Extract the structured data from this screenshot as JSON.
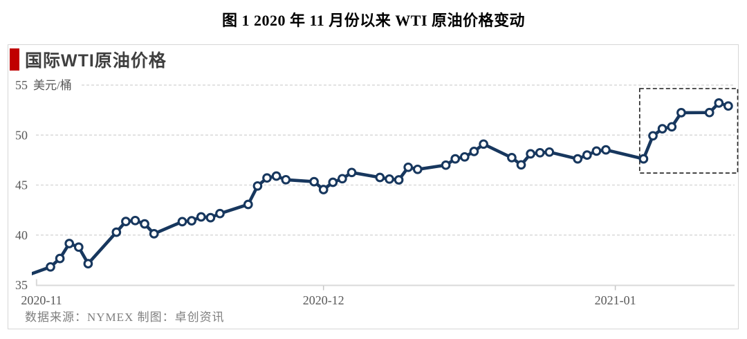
{
  "page_title": "图 1 2020 年 11 月份以来 WTI 原油价格变动",
  "panel": {
    "header": "国际WTI原油价格",
    "footer": "数据来源：NYMEX 制图：卓创资讯",
    "accent_color": "#C00000"
  },
  "chart_data": {
    "type": "line",
    "title": "国际WTI原油价格",
    "ylabel": "美元/桶",
    "unit_label": "美元/桶",
    "ylim": [
      35,
      55
    ],
    "yticks": [
      35,
      40,
      45,
      50,
      55
    ],
    "grid": "horizontal-dashed",
    "legend": "none",
    "line_color": "#17375E",
    "marker": "open-circle",
    "x_axis": {
      "scale": "calendar-days",
      "start_date": "2020-11-02",
      "ticks": [
        {
          "date": "2020-11-01",
          "label": "2020-11"
        },
        {
          "date": "2020-12-01",
          "label": "2020-12"
        },
        {
          "date": "2021-01-01",
          "label": "2021-01"
        }
      ]
    },
    "lead_in_point": {
      "date": "2020-10-30",
      "value": 35.79
    },
    "series": [
      {
        "name": "WTI原油价格",
        "points": [
          {
            "date": "2020-11-02",
            "value": 36.81
          },
          {
            "date": "2020-11-03",
            "value": 37.66
          },
          {
            "date": "2020-11-04",
            "value": 39.15
          },
          {
            "date": "2020-11-05",
            "value": 38.79
          },
          {
            "date": "2020-11-06",
            "value": 37.14
          },
          {
            "date": "2020-11-09",
            "value": 40.29
          },
          {
            "date": "2020-11-10",
            "value": 41.36
          },
          {
            "date": "2020-11-11",
            "value": 41.45
          },
          {
            "date": "2020-11-12",
            "value": 41.12
          },
          {
            "date": "2020-11-13",
            "value": 40.13
          },
          {
            "date": "2020-11-16",
            "value": 41.34
          },
          {
            "date": "2020-11-17",
            "value": 41.43
          },
          {
            "date": "2020-11-18",
            "value": 41.82
          },
          {
            "date": "2020-11-19",
            "value": 41.74
          },
          {
            "date": "2020-11-20",
            "value": 42.15
          },
          {
            "date": "2020-11-23",
            "value": 43.06
          },
          {
            "date": "2020-11-24",
            "value": 44.91
          },
          {
            "date": "2020-11-25",
            "value": 45.71
          },
          {
            "date": "2020-11-26",
            "value": 45.9
          },
          {
            "date": "2020-11-27",
            "value": 45.53
          },
          {
            "date": "2020-11-30",
            "value": 45.34
          },
          {
            "date": "2020-12-01",
            "value": 44.55
          },
          {
            "date": "2020-12-02",
            "value": 45.28
          },
          {
            "date": "2020-12-03",
            "value": 45.64
          },
          {
            "date": "2020-12-04",
            "value": 46.26
          },
          {
            "date": "2020-12-07",
            "value": 45.76
          },
          {
            "date": "2020-12-08",
            "value": 45.6
          },
          {
            "date": "2020-12-09",
            "value": 45.52
          },
          {
            "date": "2020-12-10",
            "value": 46.78
          },
          {
            "date": "2020-12-11",
            "value": 46.57
          },
          {
            "date": "2020-12-14",
            "value": 46.99
          },
          {
            "date": "2020-12-15",
            "value": 47.62
          },
          {
            "date": "2020-12-16",
            "value": 47.82
          },
          {
            "date": "2020-12-17",
            "value": 48.36
          },
          {
            "date": "2020-12-18",
            "value": 49.1
          },
          {
            "date": "2020-12-21",
            "value": 47.74
          },
          {
            "date": "2020-12-22",
            "value": 47.02
          },
          {
            "date": "2020-12-23",
            "value": 48.12
          },
          {
            "date": "2020-12-24",
            "value": 48.23
          },
          {
            "date": "2020-12-25",
            "value": 48.3
          },
          {
            "date": "2020-12-28",
            "value": 47.62
          },
          {
            "date": "2020-12-29",
            "value": 48.0
          },
          {
            "date": "2020-12-30",
            "value": 48.4
          },
          {
            "date": "2020-12-31",
            "value": 48.52
          },
          {
            "date": "2021-01-04",
            "value": 47.62
          },
          {
            "date": "2021-01-05",
            "value": 49.93
          },
          {
            "date": "2021-01-06",
            "value": 50.63
          },
          {
            "date": "2021-01-07",
            "value": 50.83
          },
          {
            "date": "2021-01-08",
            "value": 52.24
          },
          {
            "date": "2021-01-11",
            "value": 52.25
          },
          {
            "date": "2021-01-12",
            "value": 53.21
          },
          {
            "date": "2021-01-13",
            "value": 52.91
          }
        ]
      }
    ],
    "highlight_box": {
      "note": "dashed box highlighting the January 2021 rally",
      "x_range_dates": [
        "2021-01-03",
        "2021-01-14"
      ],
      "y_range": [
        46.2,
        54.65
      ]
    }
  }
}
